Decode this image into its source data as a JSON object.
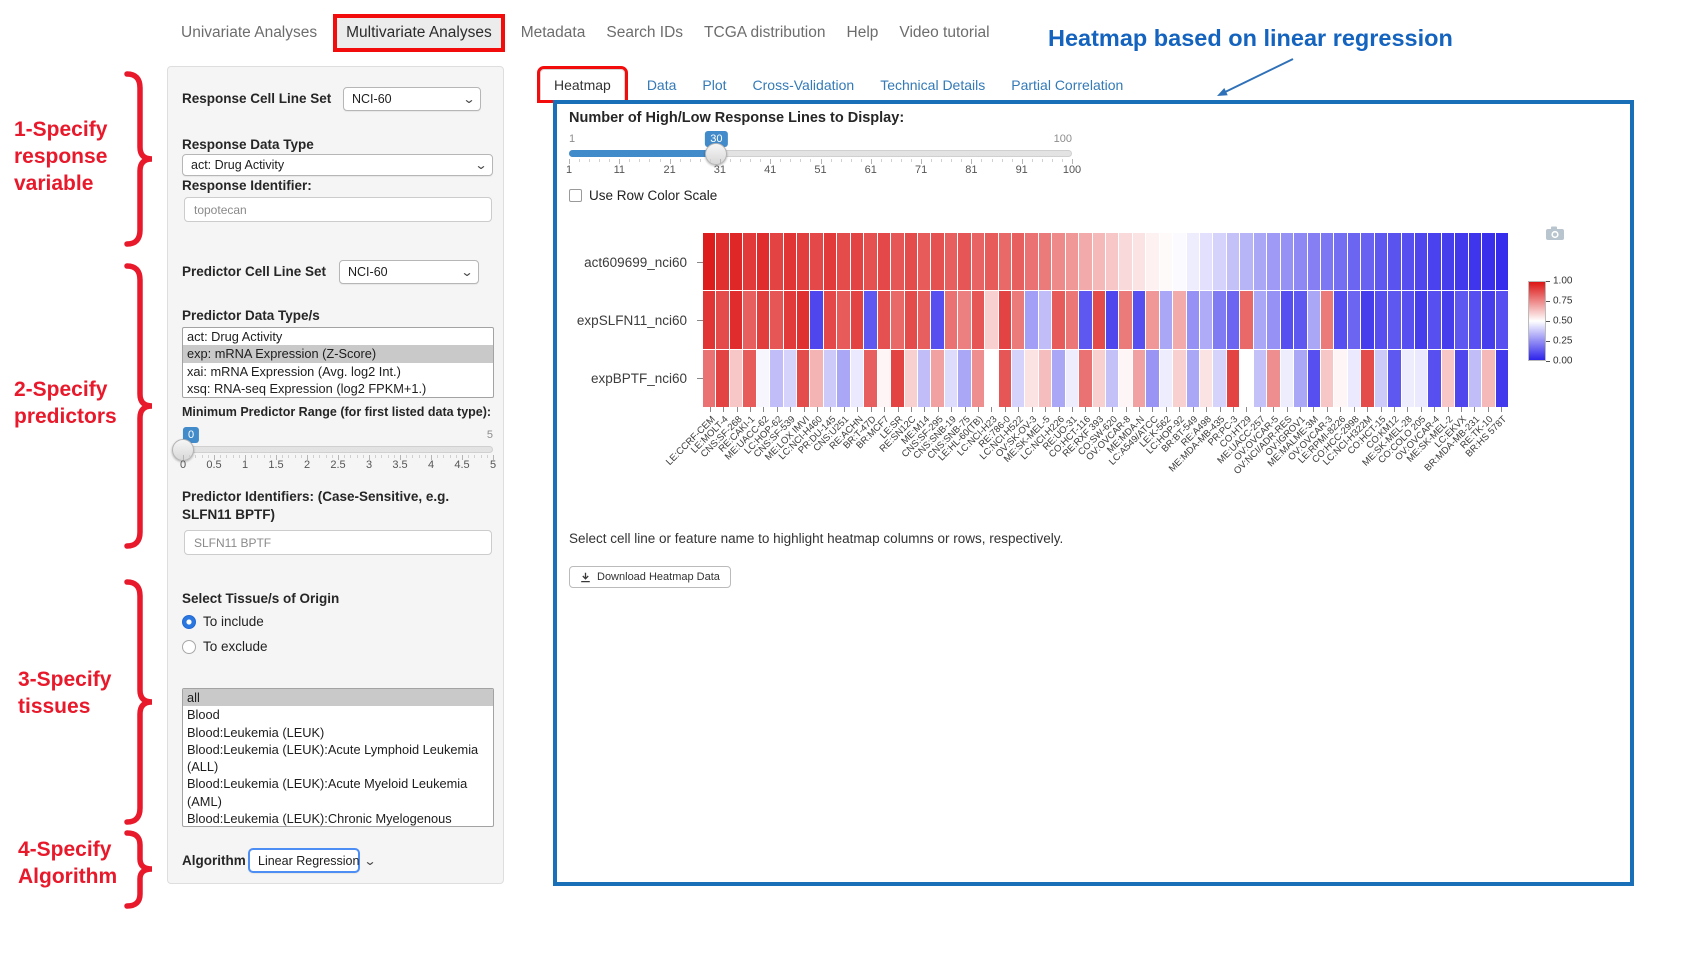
{
  "colors": {
    "annotation_red_box": "#f20c0c",
    "annotation_red_text": "#e8192b",
    "annotation_blue": "#1463be",
    "panel_border_blue": "#1a70b8",
    "tab_link_blue": "#337ab7",
    "slider_blue": "#428bca",
    "list_selection_gray": "#c9c9c9"
  },
  "nav": {
    "items": [
      {
        "label": "Univariate Analyses",
        "active": false
      },
      {
        "label": "Multivariate Analyses",
        "active": true
      },
      {
        "label": "Metadata",
        "active": false
      },
      {
        "label": "Search IDs",
        "active": false
      },
      {
        "label": "TCGA distribution",
        "active": false
      },
      {
        "label": "Help",
        "active": false
      },
      {
        "label": "Video tutorial",
        "active": false
      }
    ]
  },
  "annotations": {
    "heading": "Heatmap based on linear regression",
    "steps": [
      {
        "lines": "1-Specify\nresponse\nvariable"
      },
      {
        "lines": "2-Specify\npredictors"
      },
      {
        "lines": "3-Specify\ntissues"
      },
      {
        "lines": "4-Specify\nAlgorithm"
      }
    ]
  },
  "sidebar": {
    "response_set": {
      "label": "Response Cell Line Set",
      "value": "NCI-60"
    },
    "response_type": {
      "label": "Response Data Type",
      "value": "act: Drug Activity"
    },
    "response_id": {
      "label": "Response Identifier:",
      "value": "topotecan"
    },
    "predictor_set": {
      "label": "Predictor Cell Line Set",
      "value": "NCI-60"
    },
    "predictor_types": {
      "label": "Predictor Data Type/s",
      "options": [
        "act: Drug Activity",
        "exp: mRNA Expression (Z-Score)",
        "xai: mRNA Expression (Avg. log2 Int.)",
        "xsq: RNA-seq Expression (log2 FPKM+1.)"
      ],
      "selected_index": 1
    },
    "min_range": {
      "label": "Minimum Predictor Range (for first listed data type):",
      "value": "0",
      "min": 0,
      "max": 5,
      "max_label": "5",
      "ticks": [
        "0",
        "0.5",
        "1",
        "1.5",
        "2",
        "2.5",
        "3",
        "3.5",
        "4",
        "4.5",
        "5"
      ]
    },
    "predictor_ids": {
      "label": "Predictor Identifiers: (Case-Sensitive, e.g. SLFN11 BPTF)",
      "value": "SLFN11 BPTF"
    },
    "tissue": {
      "label": "Select Tissue/s of Origin",
      "include_label": "To include",
      "exclude_label": "To exclude",
      "mode": "include",
      "options": [
        "all",
        "Blood",
        "Blood:Leukemia (LEUK)",
        "Blood:Leukemia (LEUK):Acute Lymphoid Leukemia (ALL)",
        "Blood:Leukemia (LEUK):Acute Myeloid Leukemia (AML)",
        "Blood:Leukemia (LEUK):Chronic Myelogenous Leukemia (CML)"
      ],
      "selected_index": 0
    },
    "algorithm": {
      "label": "Algorithm",
      "value": "Linear Regression"
    }
  },
  "main": {
    "tabs": [
      {
        "label": "Heatmap",
        "active": true
      },
      {
        "label": "Data",
        "active": false
      },
      {
        "label": "Plot",
        "active": false
      },
      {
        "label": "Cross-Validation",
        "active": false
      },
      {
        "label": "Technical Details",
        "active": false
      },
      {
        "label": "Partial Correlation",
        "active": false
      }
    ],
    "lines_slider": {
      "label": "Number of High/Low Response Lines to Display:",
      "min_label": "1",
      "max_label": "100",
      "value": 30,
      "min": 1,
      "max": 100,
      "ticks": [
        "1",
        "11",
        "21",
        "31",
        "41",
        "51",
        "61",
        "71",
        "81",
        "91",
        "100"
      ]
    },
    "row_color_scale": {
      "label": "Use Row Color Scale",
      "checked": false
    },
    "hint": "Select cell line or feature name to highlight heatmap columns or rows, respectively.",
    "download_label": "Download Heatmap Data"
  },
  "chart_data": {
    "type": "heatmap",
    "columns": [
      "LE:CCRF-CEM",
      "LE:MOLT-4",
      "CNS:SF-268",
      "RE:CAKI-1",
      "ME:UACC-62",
      "LC:HOP-62",
      "CNS:SF-539",
      "ME:LOX IMVI",
      "LC:NCI-H460",
      "PR:DU-145",
      "CNS:U251",
      "RE:ACHN",
      "BR:T-47D",
      "BR:MCF7",
      "LE:SR",
      "RE:SN12C",
      "ME:M14",
      "CNS:SF-295",
      "CNS:SNB-19",
      "CNS:SNB-75",
      "LE:HL-60(TB)",
      "LC:NCI-H23",
      "RE:786-0",
      "LC:NCI-H522",
      "OV:SK-OV-3",
      "ME:SK-MEL-5",
      "LC:NCI-H226",
      "RE:UO-31",
      "CO:HCT-116",
      "RE:RXF 393",
      "CO:SW-620",
      "OV:OVCAR-8",
      "ME:MDA-N",
      "LC:A549/ATCC",
      "LE:K-562",
      "LC:HOP-92",
      "BR:BT-549",
      "RE:A498",
      "ME:MDA-MB-435",
      "PR:PC-3",
      "CO:HT29",
      "ME:UACC-257",
      "OV:OVCAR-5",
      "OV:NCI/ADR-RES",
      "OV:IGROV1",
      "ME:MALME-3M",
      "OV:OVCAR-3",
      "LE:RPMI-8226",
      "CO:HCC-2998",
      "LC:NCI-H322M",
      "CO:HCT-15",
      "CO:KM12",
      "ME:SK-MEL-28",
      "CO:COLO 205",
      "OV:OVCAR-4",
      "ME:SK-MEL-2",
      "LC:EKVX",
      "BR:MDA-MB-231",
      "RE:TK-10",
      "BR:HS 578T"
    ],
    "series": [
      {
        "name": "act609699_nci60",
        "values": [
          0.98,
          0.94,
          0.96,
          0.92,
          0.95,
          0.9,
          0.93,
          0.91,
          0.89,
          0.92,
          0.88,
          0.9,
          0.87,
          0.89,
          0.86,
          0.88,
          0.85,
          0.87,
          0.84,
          0.86,
          0.83,
          0.85,
          0.82,
          0.84,
          0.8,
          0.78,
          0.75,
          0.72,
          0.68,
          0.65,
          0.62,
          0.58,
          0.56,
          0.53,
          0.51,
          0.49,
          0.46,
          0.43,
          0.4,
          0.36,
          0.33,
          0.3,
          0.27,
          0.25,
          0.23,
          0.21,
          0.19,
          0.17,
          0.15,
          0.14,
          0.12,
          0.11,
          0.1,
          0.08,
          0.07,
          0.06,
          0.05,
          0.04,
          0.03,
          0.02
        ]
      },
      {
        "name": "expSLFN11_nci60",
        "values": [
          0.93,
          0.88,
          0.95,
          0.84,
          0.91,
          0.86,
          0.92,
          0.94,
          0.08,
          0.89,
          0.85,
          0.9,
          0.12,
          0.87,
          0.82,
          0.88,
          0.84,
          0.1,
          0.8,
          0.77,
          0.86,
          0.6,
          0.9,
          0.78,
          0.28,
          0.35,
          0.85,
          0.79,
          0.12,
          0.88,
          0.08,
          0.78,
          0.1,
          0.72,
          0.3,
          0.68,
          0.25,
          0.31,
          0.2,
          0.15,
          0.82,
          0.3,
          0.25,
          0.1,
          0.12,
          0.3,
          0.78,
          0.1,
          0.15,
          0.06,
          0.1,
          0.12,
          0.1,
          0.06,
          0.1,
          0.06,
          0.12,
          0.1,
          0.06,
          0.1
        ]
      },
      {
        "name": "expBPTF_nci60",
        "values": [
          0.8,
          0.9,
          0.62,
          0.85,
          0.48,
          0.35,
          0.4,
          0.88,
          0.66,
          0.38,
          0.3,
          0.45,
          0.84,
          0.52,
          0.9,
          0.6,
          0.35,
          0.7,
          0.42,
          0.3,
          0.74,
          0.5,
          0.86,
          0.4,
          0.56,
          0.64,
          0.3,
          0.46,
          0.8,
          0.6,
          0.36,
          0.52,
          0.7,
          0.26,
          0.46,
          0.6,
          0.3,
          0.56,
          0.4,
          0.9,
          0.5,
          0.36,
          0.74,
          0.46,
          0.3,
          0.1,
          0.62,
          0.52,
          0.45,
          0.88,
          0.38,
          0.12,
          0.46,
          0.45,
          0.1,
          0.62,
          0.08,
          0.35,
          0.65,
          0.05
        ]
      }
    ],
    "value_range": [
      0,
      1
    ],
    "colorscale": {
      "high": "#dc1414",
      "mid": "#ffffff",
      "low": "#2d23eb"
    },
    "colorbar_ticks": [
      "1.00",
      "0.75",
      "0.50",
      "0.25",
      "0.00"
    ],
    "legend_position": "right",
    "grid": false
  }
}
